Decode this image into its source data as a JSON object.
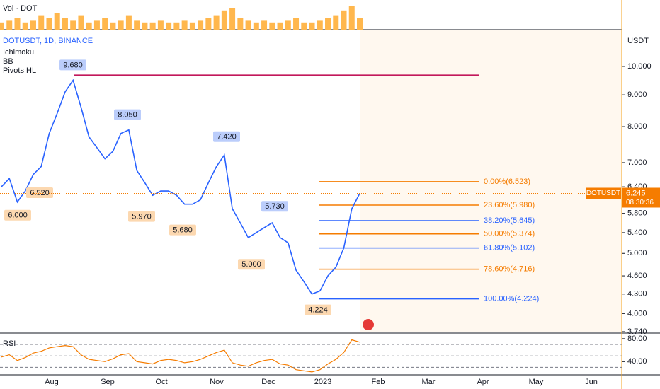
{
  "chart_data": {
    "type": "line",
    "volume_title": "Vol · DOT",
    "title": "DOTUSDT, 1D, BINANCE",
    "indicators": [
      "Ichimoku",
      "BB",
      "Pivots HL"
    ],
    "currency": "USDT",
    "log_scale": true,
    "ylim": [
      3.73,
      11.46
    ],
    "yticks": [
      {
        "value": 10,
        "label": "10.000"
      },
      {
        "value": 9,
        "label": "9.000"
      },
      {
        "value": 8,
        "label": "8.000"
      },
      {
        "value": 7,
        "label": "7.000"
      },
      {
        "value": 6.4,
        "label": "6.400"
      },
      {
        "value": 5.8,
        "label": "5.800"
      },
      {
        "value": 5.4,
        "label": "5.400"
      },
      {
        "value": 5,
        "label": "5.000"
      },
      {
        "value": 4.6,
        "label": "4.600"
      },
      {
        "value": 4.3,
        "label": "4.300"
      },
      {
        "value": 4,
        "label": "4.000"
      },
      {
        "value": 3.74,
        "label": "3.740"
      }
    ],
    "series": [
      {
        "name": "DOTUSDT",
        "color": "#2962ff",
        "values": [
          6.4,
          6.6,
          6.05,
          6.3,
          6.7,
          6.9,
          7.8,
          8.4,
          9.1,
          9.5,
          8.6,
          7.7,
          7.4,
          7.1,
          7.3,
          7.8,
          7.9,
          6.8,
          6.5,
          6.2,
          6.3,
          6.3,
          6.2,
          6.0,
          6.0,
          6.1,
          6.5,
          6.9,
          7.2,
          5.9,
          5.6,
          5.3,
          5.4,
          5.5,
          5.6,
          5.3,
          5.2,
          4.7,
          4.5,
          4.3,
          4.35,
          4.6,
          4.75,
          5.1,
          5.9,
          6.245
        ]
      }
    ],
    "volume": {
      "color": "#ffb74d",
      "values": [
        3,
        4,
        5,
        3,
        4,
        6,
        5,
        7,
        5,
        4,
        6,
        3,
        4,
        5,
        3,
        4,
        6,
        4,
        3,
        3,
        4,
        3,
        3,
        4,
        3,
        4,
        5,
        6,
        8,
        9,
        5,
        4,
        3,
        4,
        3,
        3,
        4,
        5,
        3,
        3,
        4,
        5,
        6,
        8,
        10,
        5
      ]
    },
    "months": [
      "Aug",
      "Sep",
      "Oct",
      "Nov",
      "Dec",
      "2023",
      "Feb",
      "Mar",
      "Apr",
      "May",
      "Jun"
    ],
    "pivot_highs": {
      "values": [
        9.68,
        8.05,
        7.42,
        5.73
      ],
      "value_labels": [
        "9.680",
        "8.050",
        "7.420",
        "5.730"
      ],
      "color": "#2962ff"
    },
    "pivot_lows": {
      "values": [
        6.0,
        6.52,
        5.97,
        5.68,
        5.0,
        4.224
      ],
      "value_labels": [
        "6.000",
        "6.520",
        "5.970",
        "5.680",
        "5.000",
        "4.224"
      ],
      "color": "#f57c00"
    },
    "resistance": {
      "value": 9.68,
      "color": "#c2185b"
    },
    "fib_levels": [
      {
        "label": "0.00%(6.523)",
        "value": 6.523,
        "color": "#f57c00"
      },
      {
        "label": "23.60%(5.980)",
        "value": 5.98,
        "color": "#f57c00"
      },
      {
        "label": "38.20%(5.645)",
        "value": 5.645,
        "color": "#2962ff"
      },
      {
        "label": "50.00%(5.374)",
        "value": 5.374,
        "color": "#f57c00"
      },
      {
        "label": "61.80%(5.102)",
        "value": 5.102,
        "color": "#2962ff"
      },
      {
        "label": "78.60%(4.716)",
        "value": 4.716,
        "color": "#f57c00"
      },
      {
        "label": "100.00%(4.224)",
        "value": 4.224,
        "color": "#2962ff"
      }
    ],
    "last_price": {
      "symbol": "DOTUSDT",
      "value": 6.245,
      "label": "6.245",
      "countdown": "08:30:36",
      "color": "#f57c00"
    },
    "rsi": {
      "title": "RSI",
      "color": "#f57c00",
      "ylim": [
        18.2,
        88.5
      ],
      "yticks": [
        {
          "value": 80,
          "label": "80.00"
        },
        {
          "value": 40,
          "label": "40.00"
        }
      ],
      "bands": [
        70,
        50,
        30
      ],
      "values": [
        48,
        52,
        42,
        47,
        55,
        58,
        64,
        66,
        68,
        66,
        52,
        44,
        42,
        40,
        45,
        52,
        54,
        40,
        38,
        36,
        42,
        44,
        42,
        38,
        40,
        44,
        50,
        56,
        60,
        38,
        34,
        32,
        38,
        42,
        44,
        36,
        34,
        26,
        24,
        22,
        26,
        36,
        44,
        56,
        78,
        74
      ]
    }
  }
}
